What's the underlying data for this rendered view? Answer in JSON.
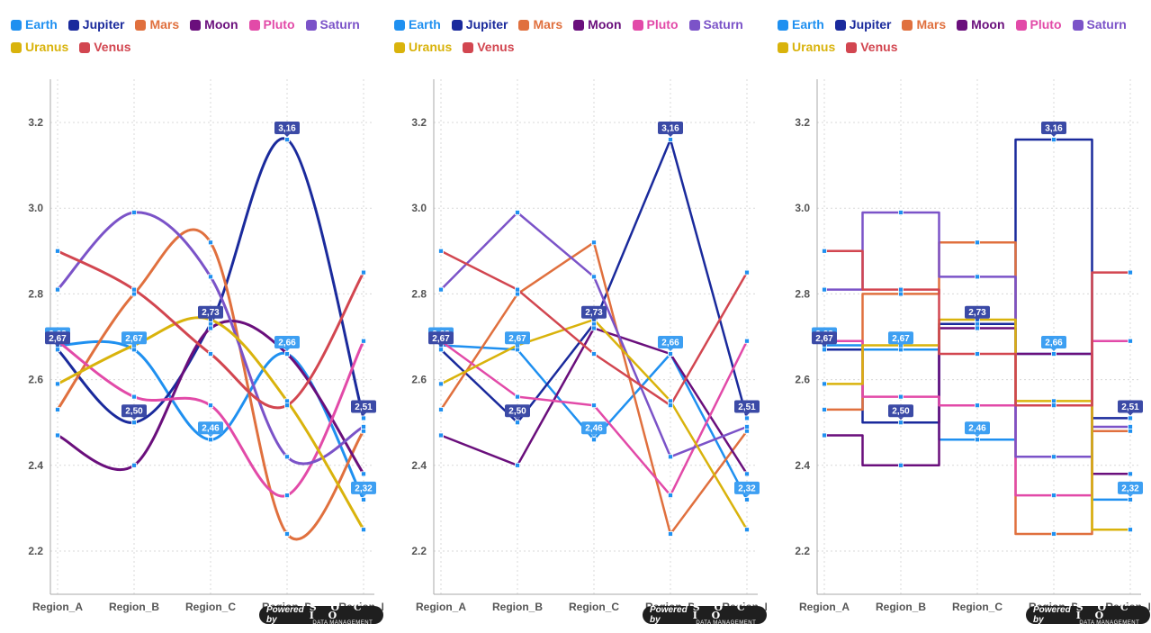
{
  "branding": {
    "powered_by": "Powered by",
    "name": "S O C I O",
    "subtitle": "DATA MANAGEMENT"
  },
  "chart_data": [
    {
      "type": "line",
      "interpolation": "spline",
      "categories": [
        "Region_A",
        "Region_B",
        "Region_C",
        "Region_D",
        "Region_E"
      ],
      "ylim": [
        2.1,
        3.3
      ],
      "yticks": [
        "2.2",
        "2.4",
        "2.6",
        "2.8",
        "3.0",
        "3.2"
      ],
      "yticks_values": [
        2.2,
        2.4,
        2.6,
        2.8,
        3.0,
        3.2
      ],
      "grid": true,
      "legend_position": "top-left",
      "series": [
        {
          "name": "Earth",
          "color": "#1f90f0",
          "values": [
            2.68,
            2.67,
            2.46,
            2.66,
            2.32
          ],
          "label_color": "#3d9ff2",
          "labels": [
            "2,68",
            "2,67",
            "2,46",
            "2,66",
            "2,32"
          ],
          "label_mask": [
            true,
            true,
            true,
            true,
            true
          ]
        },
        {
          "name": "Jupiter",
          "color": "#1a2a9c",
          "values": [
            2.67,
            2.5,
            2.73,
            3.16,
            2.51
          ],
          "label_color": "#3b4aa6",
          "labels": [
            "2,67",
            "2,50",
            "2,73",
            "3,16",
            "2,51"
          ],
          "label_mask": [
            true,
            true,
            true,
            true,
            true
          ]
        },
        {
          "name": "Mars",
          "color": "#e0703e",
          "values": [
            2.53,
            2.8,
            2.92,
            2.24,
            2.48
          ]
        },
        {
          "name": "Moon",
          "color": "#6a0f7c",
          "values": [
            2.47,
            2.4,
            2.72,
            2.66,
            2.38
          ]
        },
        {
          "name": "Pluto",
          "color": "#e24aa8",
          "values": [
            2.69,
            2.56,
            2.54,
            2.33,
            2.69
          ]
        },
        {
          "name": "Saturn",
          "color": "#7b53c8",
          "values": [
            2.81,
            2.99,
            2.84,
            2.42,
            2.49
          ]
        },
        {
          "name": "Uranus",
          "color": "#d9b30c",
          "values": [
            2.59,
            2.68,
            2.74,
            2.55,
            2.25
          ]
        },
        {
          "name": "Venus",
          "color": "#d24650",
          "values": [
            2.9,
            2.81,
            2.66,
            2.54,
            2.85
          ]
        }
      ]
    },
    {
      "type": "line",
      "interpolation": "linear",
      "categories": [
        "Region_A",
        "Region_B",
        "Region_C",
        "Region_D",
        "Region_E"
      ],
      "ylim": [
        2.1,
        3.3
      ],
      "yticks": [
        "2.2",
        "2.4",
        "2.6",
        "2.8",
        "3.0",
        "3.2"
      ],
      "yticks_values": [
        2.2,
        2.4,
        2.6,
        2.8,
        3.0,
        3.2
      ],
      "grid": true,
      "legend_position": "top-left",
      "series": [
        {
          "name": "Earth",
          "color": "#1f90f0",
          "values": [
            2.68,
            2.67,
            2.46,
            2.66,
            2.32
          ],
          "label_color": "#3d9ff2",
          "labels": [
            "2,68",
            "2,67",
            "2,46",
            "2,66",
            "2,32"
          ],
          "label_mask": [
            true,
            true,
            true,
            true,
            true
          ]
        },
        {
          "name": "Jupiter",
          "color": "#1a2a9c",
          "values": [
            2.67,
            2.5,
            2.73,
            3.16,
            2.51
          ],
          "label_color": "#3b4aa6",
          "labels": [
            "2,67",
            "2,50",
            "2,73",
            "3,16",
            "2,51"
          ],
          "label_mask": [
            true,
            true,
            true,
            true,
            true
          ]
        },
        {
          "name": "Mars",
          "color": "#e0703e",
          "values": [
            2.53,
            2.8,
            2.92,
            2.24,
            2.48
          ]
        },
        {
          "name": "Moon",
          "color": "#6a0f7c",
          "values": [
            2.47,
            2.4,
            2.72,
            2.66,
            2.38
          ]
        },
        {
          "name": "Pluto",
          "color": "#e24aa8",
          "values": [
            2.69,
            2.56,
            2.54,
            2.33,
            2.69
          ]
        },
        {
          "name": "Saturn",
          "color": "#7b53c8",
          "values": [
            2.81,
            2.99,
            2.84,
            2.42,
            2.49
          ]
        },
        {
          "name": "Uranus",
          "color": "#d9b30c",
          "values": [
            2.59,
            2.68,
            2.74,
            2.55,
            2.25
          ]
        },
        {
          "name": "Venus",
          "color": "#d24650",
          "values": [
            2.9,
            2.81,
            2.66,
            2.54,
            2.85
          ]
        }
      ]
    },
    {
      "type": "line",
      "interpolation": "step",
      "categories": [
        "Region_A",
        "Region_B",
        "Region_C",
        "Region_D",
        "Region_E"
      ],
      "ylim": [
        2.1,
        3.3
      ],
      "yticks": [
        "2.2",
        "2.4",
        "2.6",
        "2.8",
        "3.0",
        "3.2"
      ],
      "yticks_values": [
        2.2,
        2.4,
        2.6,
        2.8,
        3.0,
        3.2
      ],
      "grid": true,
      "legend_position": "top-left",
      "series": [
        {
          "name": "Earth",
          "color": "#1f90f0",
          "values": [
            2.68,
            2.67,
            2.46,
            2.66,
            2.32
          ],
          "label_color": "#3d9ff2",
          "labels": [
            "2,68",
            "2,67",
            "2,46",
            "2,66",
            "2,32"
          ],
          "label_mask": [
            true,
            true,
            true,
            true,
            true
          ]
        },
        {
          "name": "Jupiter",
          "color": "#1a2a9c",
          "values": [
            2.67,
            2.5,
            2.73,
            3.16,
            2.51
          ],
          "label_color": "#3b4aa6",
          "labels": [
            "2,67",
            "2,50",
            "2,73",
            "3,16",
            "2,51"
          ],
          "label_mask": [
            true,
            true,
            true,
            true,
            true
          ]
        },
        {
          "name": "Mars",
          "color": "#e0703e",
          "values": [
            2.53,
            2.8,
            2.92,
            2.24,
            2.48
          ]
        },
        {
          "name": "Moon",
          "color": "#6a0f7c",
          "values": [
            2.47,
            2.4,
            2.72,
            2.66,
            2.38
          ]
        },
        {
          "name": "Pluto",
          "color": "#e24aa8",
          "values": [
            2.69,
            2.56,
            2.54,
            2.33,
            2.69
          ]
        },
        {
          "name": "Saturn",
          "color": "#7b53c8",
          "values": [
            2.81,
            2.99,
            2.84,
            2.42,
            2.49
          ]
        },
        {
          "name": "Uranus",
          "color": "#d9b30c",
          "values": [
            2.59,
            2.68,
            2.74,
            2.55,
            2.25
          ]
        },
        {
          "name": "Venus",
          "color": "#d24650",
          "values": [
            2.9,
            2.81,
            2.66,
            2.54,
            2.85
          ]
        }
      ]
    }
  ]
}
